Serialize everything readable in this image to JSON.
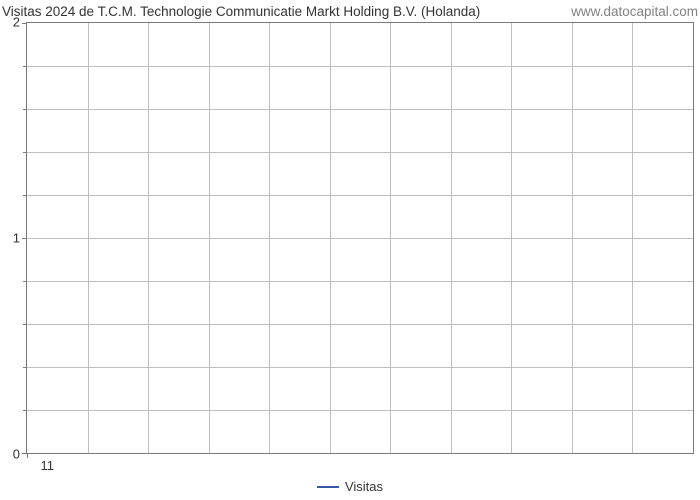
{
  "chart": {
    "type": "line",
    "title_left": "Visitas 2024 de T.C.M. Technologie Communicatie Markt Holding B.V. (Holanda)",
    "title_right": "www.datocapital.com",
    "title_fontsize": 13.5,
    "title_color": "#333333",
    "title_right_color": "#808080",
    "background_color": "#ffffff",
    "border_color": "#7a7a7a",
    "grid_color": "#bfbfbf",
    "tick_font_size": 13,
    "tick_color": "#333333",
    "y": {
      "min": 0,
      "max": 2,
      "major_ticks": [
        0,
        1,
        2
      ],
      "minor_steps": 5,
      "labels": [
        "0",
        "1",
        "2"
      ]
    },
    "x": {
      "n_columns": 11,
      "major_ticks": [
        0
      ],
      "labels": [
        "11"
      ]
    },
    "series": [
      {
        "name": "Visitas",
        "color": "#3658a6",
        "data": []
      }
    ],
    "legend": {
      "items": [
        {
          "label": "Visitas",
          "color": "#3658a6"
        }
      ],
      "fontsize": 13
    }
  }
}
